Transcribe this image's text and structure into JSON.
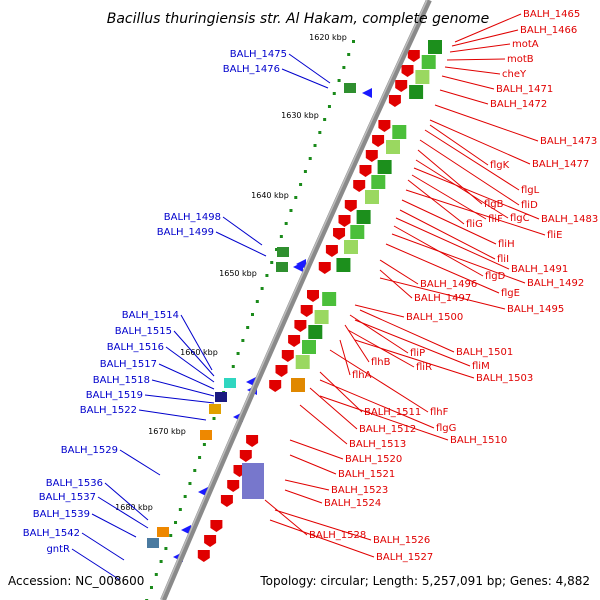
{
  "title": "Bacillus thuringiensis str. Al Hakam, complete genome",
  "accession": "Accession: NC_008600",
  "topology": "Topology: circular; Length: 5,257,091 bp; Genes: 4,882",
  "colors": {
    "left_labels": "#0000cc",
    "right_labels": "#e00000",
    "backbone": "#8a8a8a"
  },
  "ticks": [
    "1620 kbp",
    "1630 kbp",
    "1640 kbp",
    "1650 kbp",
    "1660 kbp",
    "1670 kbp",
    "1680 kbp"
  ],
  "left_genes": [
    "BALH_1475",
    "BALH_1476",
    "BALH_1498",
    "BALH_1499",
    "BALH_1514",
    "BALH_1515",
    "BALH_1516",
    "BALH_1517",
    "BALH_1518",
    "BALH_1519",
    "BALH_1522",
    "BALH_1529",
    "BALH_1536",
    "BALH_1537",
    "BALH_1539",
    "BALH_1542",
    "gntR"
  ],
  "right_genes": [
    "BALH_1465",
    "BALH_1466",
    "motA",
    "motB",
    "cheY",
    "BALH_1471",
    "BALH_1472",
    "BALH_1473",
    "BALH_1477",
    "flgK",
    "flgL",
    "fliD",
    "flgB",
    "flgC",
    "BALH_1483",
    "fliF",
    "fliG",
    "fliE",
    "fliH",
    "fliI",
    "BALH_1491",
    "flgD",
    "BALH_1492",
    "BALH_1496",
    "flgE",
    "BALH_1497",
    "BALH_1495",
    "BALH_1500",
    "BALH_1501",
    "fliP",
    "fliM",
    "flhB",
    "fliR",
    "BALH_1503",
    "flhA",
    "flhF",
    "BALH_1511",
    "flgG",
    "BALH_1512",
    "BALH_1510",
    "BALH_1513",
    "BALH_1520",
    "BALH_1521",
    "BALH_1523",
    "BALH_1524",
    "BALH_1528",
    "BALH_1526",
    "BALH_1527"
  ]
}
